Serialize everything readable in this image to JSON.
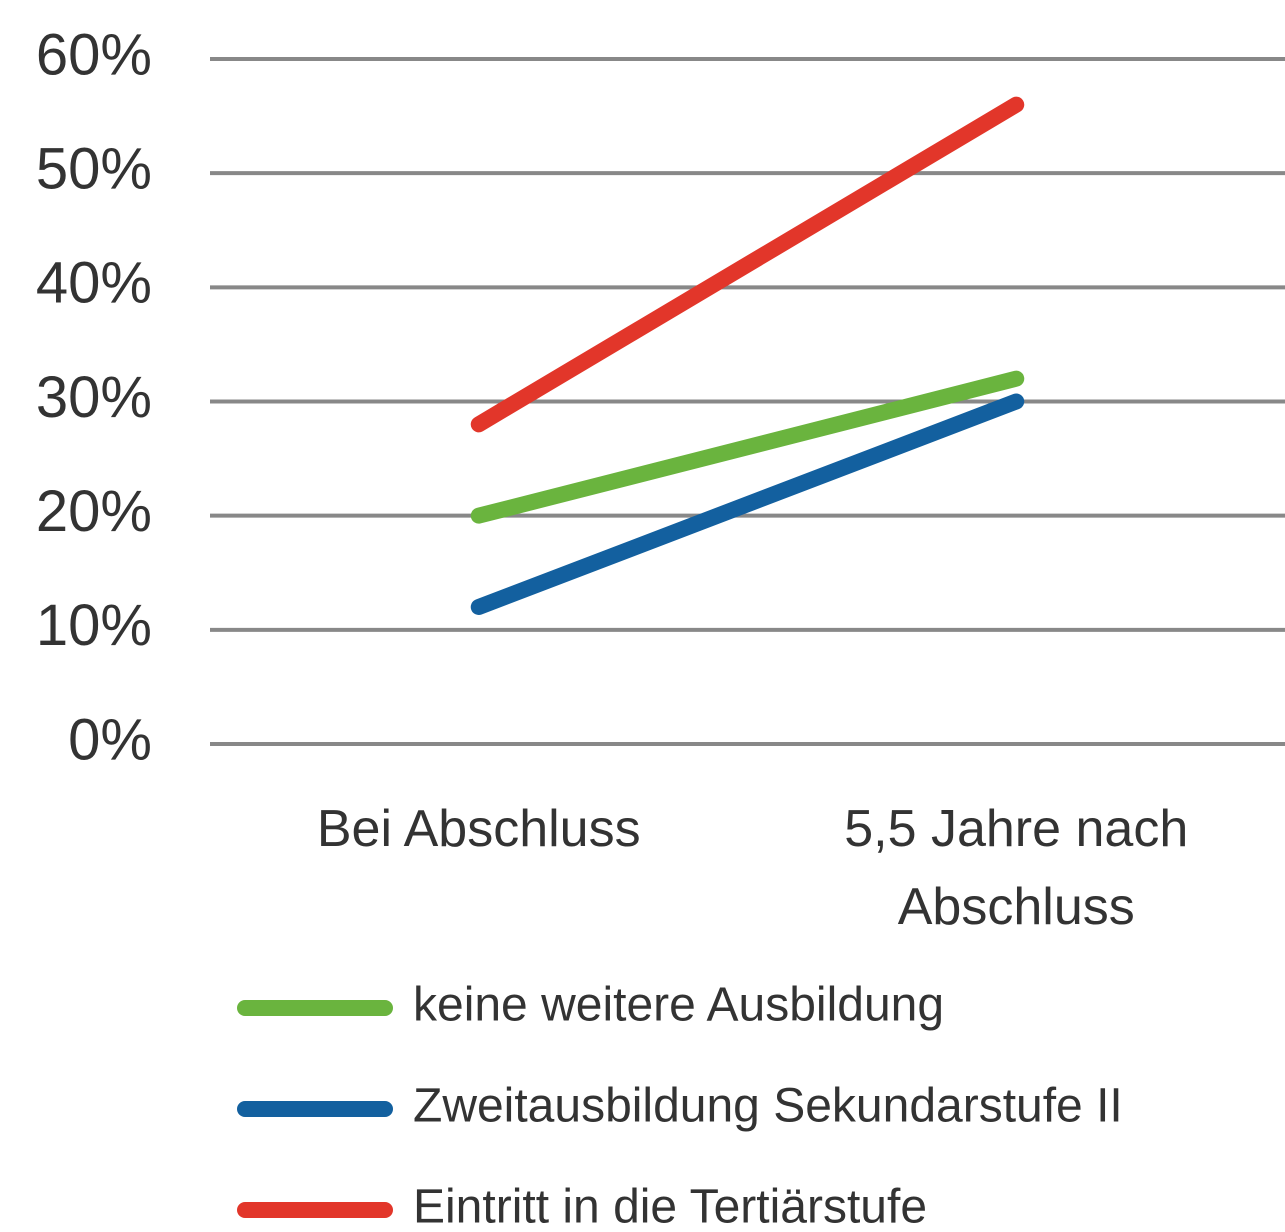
{
  "chart_data": {
    "type": "line",
    "categories": [
      "Bei Abschluss",
      "5,5 Jahre nach Abschluss"
    ],
    "series": [
      {
        "name": "keine weitere Ausbildung",
        "color": "#6ab43e",
        "values": [
          20,
          32
        ]
      },
      {
        "name": "Zweitausbildung Sekundarstufe II",
        "color": "#13609f",
        "values": [
          12,
          30
        ]
      },
      {
        "name": "Eintritt in die Tertiärstufe",
        "color": "#e2362a",
        "values": [
          28,
          56
        ]
      }
    ],
    "ylim": [
      0,
      60
    ],
    "yticks": [
      {
        "value": 0,
        "label": "0%"
      },
      {
        "value": 10,
        "label": "10%"
      },
      {
        "value": 20,
        "label": "20%"
      },
      {
        "value": 30,
        "label": "30%"
      },
      {
        "value": 40,
        "label": "40%"
      },
      {
        "value": 50,
        "label": "50%"
      },
      {
        "value": 60,
        "label": "60%"
      }
    ],
    "grid": true,
    "legend": "bottom"
  }
}
